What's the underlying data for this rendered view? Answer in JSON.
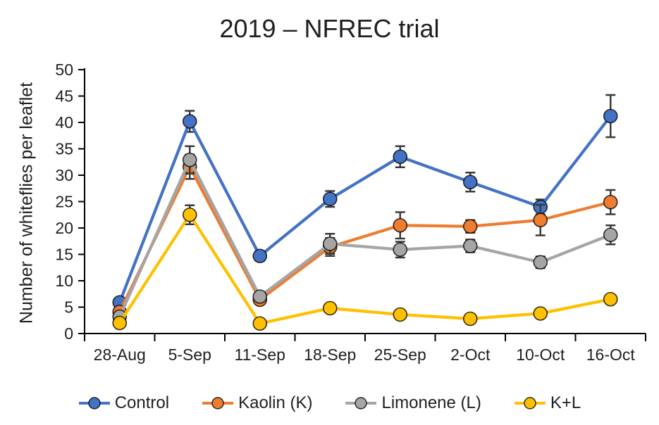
{
  "chart_data": {
    "type": "line",
    "title": "2019 – NFREC trial",
    "xlabel": "",
    "ylabel": "Number of whiteflies per leaflet",
    "ylim": [
      0,
      50
    ],
    "ytick_step": 5,
    "grid": false,
    "legend_position": "bottom",
    "error_bars": true,
    "categories": [
      "28-Aug",
      "5-Sep",
      "11-Sep",
      "18-Sep",
      "25-Sep",
      "2-Oct",
      "10-Oct",
      "16-Oct"
    ],
    "series": [
      {
        "name": "Control",
        "color": "#4472C4",
        "values": [
          5.9,
          40.2,
          14.7,
          25.5,
          33.5,
          28.7,
          24.0,
          41.2
        ],
        "error": [
          0.7,
          2.0,
          0.9,
          1.5,
          2.0,
          1.8,
          1.4,
          4.0
        ]
      },
      {
        "name": "Kaolin (K)",
        "color": "#ED7D31",
        "values": [
          4.1,
          31.6,
          6.4,
          16.4,
          20.5,
          20.3,
          21.5,
          24.9
        ],
        "error": [
          0.5,
          2.3,
          0.6,
          1.7,
          2.5,
          1.2,
          2.9,
          2.3
        ]
      },
      {
        "name": "Limonene (L)",
        "color": "#A5A5A5",
        "values": [
          3.2,
          32.9,
          7.0,
          17.0,
          15.9,
          16.6,
          13.5,
          18.7
        ],
        "error": [
          0.5,
          2.6,
          0.6,
          1.9,
          1.5,
          1.2,
          1.1,
          1.8
        ]
      },
      {
        "name": "K+L",
        "color": "#FFC000",
        "values": [
          2.0,
          22.5,
          1.9,
          4.8,
          3.6,
          2.8,
          3.8,
          6.5
        ],
        "error": [
          0.4,
          1.8,
          0.4,
          0.6,
          0.5,
          0.4,
          0.5,
          0.6
        ]
      }
    ]
  },
  "colors": {
    "background": "#ffffff",
    "axis": "#000000",
    "error_bar": "#3a3a3a",
    "text": "#1f1f1f"
  }
}
